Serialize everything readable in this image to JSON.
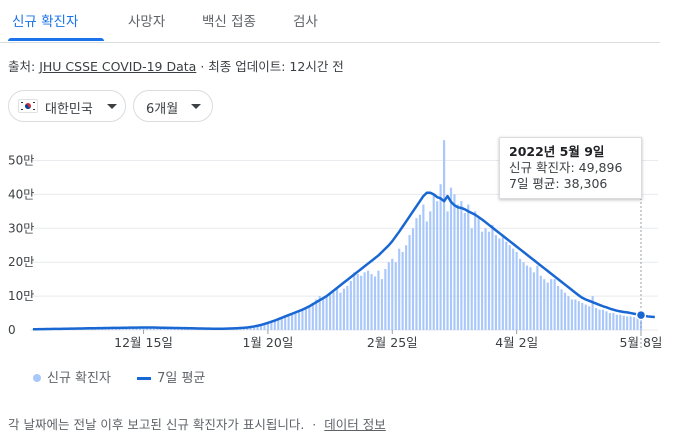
{
  "tabs": [
    {
      "label": "신규 확진자"
    },
    {
      "label": "사망자"
    },
    {
      "label": "백신 접종"
    },
    {
      "label": "검사"
    }
  ],
  "source": {
    "prefix": "출처:",
    "link": "JHU CSSE COVID-19 Data",
    "update": "· 최종 업데이트: 12시간 전"
  },
  "filters": {
    "country": "대한민국",
    "period": "6개월"
  },
  "tooltip": {
    "date": "2022년 5월 9일",
    "cases": "신규 확진자: 49,896",
    "avg": "7일 평균: 38,306"
  },
  "legend": {
    "cases": "신규 확진자",
    "avg": "7일 평균"
  },
  "footer": {
    "note": "각 날짜에는 전날 이후 보고된 신규 확진자가 표시됩니다.",
    "sep": "·",
    "link": "데이터 정보"
  },
  "colors": {
    "bar": "#a8c7fa",
    "line": "#1967d2",
    "grid": "#e8eaed"
  },
  "chart_data": {
    "type": "bar",
    "y_ticks": [
      "0",
      "10만",
      "20만",
      "30만",
      "40만",
      "50만"
    ],
    "ylim": [
      0,
      560000
    ],
    "x_ticks": [
      {
        "label": "12월 15일",
        "index": 32
      },
      {
        "label": "1월 20일",
        "index": 68
      },
      {
        "label": "2월 25일",
        "index": 104
      },
      {
        "label": "4월 2일",
        "index": 140
      },
      {
        "label": "5월 8일",
        "index": 176
      }
    ],
    "x_range": [
      "2021-11-13",
      "2022-05-09"
    ],
    "series": [
      {
        "name": "신규 확진자",
        "type": "bar",
        "values": [
          2300,
          2400,
          2500,
          2600,
          2800,
          3000,
          3200,
          3300,
          3400,
          3500,
          3700,
          3900,
          4100,
          4300,
          4500,
          4800,
          5000,
          5200,
          5300,
          5500,
          5700,
          5900,
          6000,
          6100,
          6200,
          6300,
          6500,
          6700,
          6900,
          7000,
          7100,
          7200,
          7300,
          7400,
          7300,
          7200,
          7000,
          6800,
          6600,
          6400,
          6200,
          6000,
          5800,
          5600,
          5400,
          5200,
          5000,
          4800,
          4600,
          4400,
          4200,
          4000,
          3800,
          3700,
          3700,
          3800,
          4000,
          4300,
          4700,
          5200,
          5800,
          6500,
          7500,
          8800,
          10500,
          12500,
          15000,
          18000,
          21000,
          24500,
          28000,
          32000,
          36000,
          40000,
          44000,
          48000,
          52000,
          56000,
          60000,
          65000,
          70000,
          80000,
          90000,
          100000,
          95000,
          98000,
          105000,
          112000,
          120000,
          110000,
          122000,
          130000,
          145000,
          170000,
          165000,
          160000,
          170000,
          175000,
          165000,
          158000,
          175000,
          150000,
          180000,
          200000,
          210000,
          200000,
          240000,
          230000,
          250000,
          280000,
          300000,
          330000,
          340000,
          370000,
          320000,
          350000,
          400000,
          380000,
          430000,
          560000,
          350000,
          420000,
          400000,
          370000,
          380000,
          345000,
          370000,
          300000,
          350000,
          330000,
          290000,
          300000,
          290000,
          310000,
          280000,
          270000,
          280000,
          260000,
          250000,
          240000,
          230000,
          210000,
          200000,
          190000,
          185000,
          170000,
          190000,
          160000,
          150000,
          140000,
          150000,
          150000,
          130000,
          120000,
          110000,
          100000,
          90000,
          90000,
          85000,
          80000,
          75000,
          70000,
          100000,
          65000,
          60000,
          60000,
          55000,
          50000,
          50000,
          45000,
          45000,
          42000,
          40000,
          40000,
          38000,
          50000,
          49896
        ]
      },
      {
        "name": "7일 평균",
        "type": "line",
        "values": [
          2300,
          2400,
          2500,
          2600,
          2800,
          3000,
          3200,
          3300,
          3400,
          3500,
          3700,
          3900,
          4100,
          4300,
          4500,
          4800,
          5000,
          5200,
          5300,
          5500,
          5700,
          5900,
          6000,
          6100,
          6200,
          6300,
          6500,
          6700,
          6900,
          7000,
          7100,
          7200,
          7300,
          7400,
          7300,
          7200,
          7000,
          6800,
          6600,
          6400,
          6200,
          6000,
          5800,
          5600,
          5400,
          5200,
          5000,
          4800,
          4600,
          4400,
          4200,
          4000,
          3800,
          3700,
          3700,
          3800,
          4000,
          4300,
          4700,
          5200,
          5800,
          6500,
          7500,
          8800,
          10500,
          12500,
          15000,
          18000,
          21000,
          24500,
          28000,
          32000,
          36000,
          40000,
          44000,
          48000,
          52000,
          56000,
          60000,
          65000,
          70000,
          76000,
          82000,
          88000,
          94000,
          100000,
          108000,
          116000,
          124000,
          132000,
          140000,
          148000,
          156000,
          164000,
          172000,
          180000,
          188000,
          196000,
          204000,
          212000,
          220000,
          230000,
          240000,
          250000,
          262000,
          276000,
          290000,
          305000,
          320000,
          335000,
          350000,
          365000,
          380000,
          395000,
          405000,
          405000,
          400000,
          392000,
          388000,
          380000,
          395000,
          378000,
          368000,
          362000,
          360000,
          356000,
          350000,
          345000,
          340000,
          333000,
          326000,
          318000,
          310000,
          302000,
          294000,
          286000,
          278000,
          270000,
          262000,
          254000,
          246000,
          238000,
          230000,
          222000,
          214000,
          206000,
          198000,
          190000,
          182000,
          174000,
          166000,
          158000,
          150000,
          142000,
          134000,
          126000,
          118000,
          110000,
          102000,
          95000,
          90000,
          86000,
          82000,
          78000,
          74000,
          70000,
          67000,
          63000,
          60000,
          57000,
          55000,
          53000,
          52000,
          50000,
          48000,
          46000,
          44000,
          42000,
          40000,
          39000,
          38306
        ]
      }
    ]
  }
}
